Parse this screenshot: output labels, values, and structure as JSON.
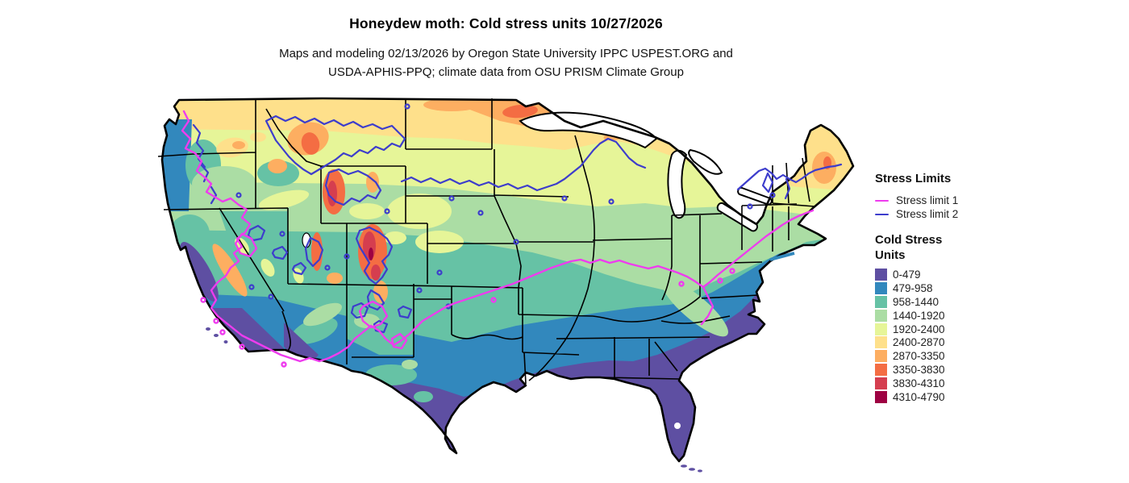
{
  "header": {
    "title": "Honeydew moth: Cold stress units 10/27/2026",
    "subtitle_line1": "Maps and modeling 02/13/2026 by Oregon State University IPPC USPEST.ORG and",
    "subtitle_line2": "USDA-APHIS-PPQ; climate data from OSU PRISM Climate Group"
  },
  "legend_stress_limits": {
    "heading": "Stress Limits",
    "items": [
      {
        "label": "Stress limit 1",
        "color": "#ee3cee"
      },
      {
        "label": "Stress limit 2",
        "color": "#3d3dcc"
      }
    ]
  },
  "legend_cold_stress": {
    "heading_line1": "Cold Stress",
    "heading_line2": "Units",
    "classes": [
      {
        "range": "0-479",
        "color": "#5e4fa2"
      },
      {
        "range": "479-958",
        "color": "#3288bd"
      },
      {
        "range": "958-1440",
        "color": "#66c2a5"
      },
      {
        "range": "1440-1920",
        "color": "#abdda4"
      },
      {
        "range": "1920-2400",
        "color": "#e6f598"
      },
      {
        "range": "2400-2870",
        "color": "#fee08b"
      },
      {
        "range": "2870-3350",
        "color": "#fdae61"
      },
      {
        "range": "3350-3830",
        "color": "#f46d43"
      },
      {
        "range": "3830-4310",
        "color": "#d53e4f"
      },
      {
        "range": "4310-4790",
        "color": "#9e0142"
      }
    ]
  },
  "map": {
    "colors": {
      "state_border": "#000000",
      "water_background": "#ffffff"
    }
  }
}
